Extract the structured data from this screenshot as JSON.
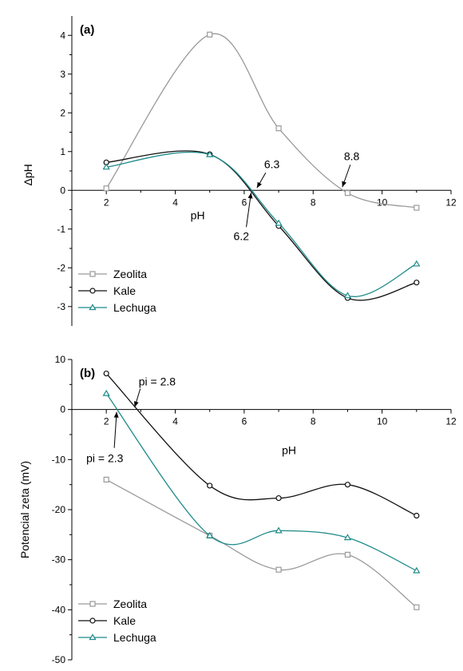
{
  "chart_data": [
    {
      "type": "line",
      "panel_label": "(a)",
      "xlabel": "pH",
      "ylabel": "ΔpH",
      "xlim": [
        1,
        12
      ],
      "ylim": [
        -3.5,
        4.5
      ],
      "xticks": [
        2,
        4,
        6,
        8,
        10,
        12
      ],
      "yticks": [
        -3,
        -2,
        -1,
        0,
        1,
        2,
        3,
        4
      ],
      "legend_position": "bottom-left",
      "grid": false,
      "series": [
        {
          "name": "Zeolita",
          "color": "#9a9a9a",
          "marker": "square",
          "x": [
            2,
            5,
            7,
            9,
            11
          ],
          "y": [
            0.05,
            4.02,
            1.6,
            -0.07,
            -0.45
          ]
        },
        {
          "name": "Kale",
          "color": "#111111",
          "marker": "circle",
          "x": [
            2,
            5,
            7,
            9,
            11
          ],
          "y": [
            0.72,
            0.93,
            -0.92,
            -2.78,
            -2.38
          ]
        },
        {
          "name": "Lechuga",
          "color": "#1f8a8a",
          "marker": "triangle",
          "x": [
            2,
            5,
            7,
            9,
            11
          ],
          "y": [
            0.6,
            0.92,
            -0.85,
            -2.72,
            -1.9
          ]
        }
      ],
      "annotations": [
        {
          "text": "6.3",
          "x": 6.3,
          "y": 0
        },
        {
          "text": "6.2",
          "x": 6.2,
          "y": 0
        },
        {
          "text": "8.8",
          "x": 8.8,
          "y": 0
        }
      ]
    },
    {
      "type": "line",
      "panel_label": "(b)",
      "xlabel": "pH",
      "ylabel": "Potencial zeta (mV)",
      "xlim": [
        1,
        12
      ],
      "ylim": [
        -50,
        10
      ],
      "xticks": [
        2,
        4,
        6,
        8,
        10,
        12
      ],
      "yticks": [
        -50,
        -40,
        -30,
        -20,
        -10,
        0,
        10
      ],
      "legend_position": "bottom-left",
      "grid": false,
      "series": [
        {
          "name": "Zeolita",
          "color": "#9a9a9a",
          "marker": "square",
          "x": [
            2,
            5,
            7,
            9,
            11
          ],
          "y": [
            -14,
            -25.2,
            -32,
            -29,
            -39.5
          ]
        },
        {
          "name": "Kale",
          "color": "#111111",
          "marker": "circle",
          "x": [
            2,
            5,
            7,
            9,
            11
          ],
          "y": [
            7.2,
            -15.2,
            -17.7,
            -15,
            -21.2
          ]
        },
        {
          "name": "Lechuga",
          "color": "#1f8a8a",
          "marker": "triangle",
          "x": [
            2,
            5,
            7,
            9,
            11
          ],
          "y": [
            3.2,
            -25.2,
            -24.2,
            -25.6,
            -32.2
          ]
        }
      ],
      "annotations": [
        {
          "text": "pi = 2.8",
          "x": 2.8,
          "y": 0
        },
        {
          "text": "pi = 2.3",
          "x": 2.3,
          "y": 0
        }
      ]
    }
  ]
}
